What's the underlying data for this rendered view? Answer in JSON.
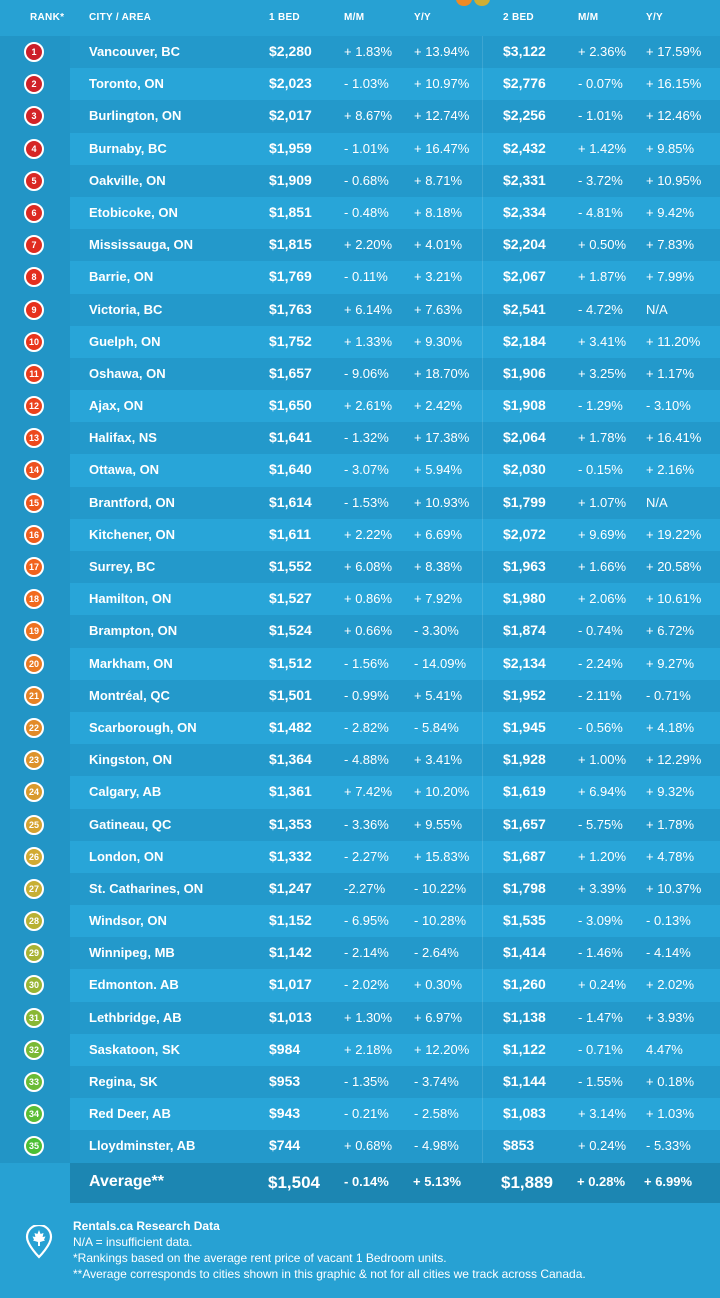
{
  "header": {
    "rank": "RANK*",
    "city": "CITY / AREA",
    "bed1": "1 BED",
    "mm1": "M/M",
    "yy1": "Y/Y",
    "bed2": "2 BED",
    "mm2": "M/M",
    "yy2": "Y/Y"
  },
  "colors": {
    "background": "#27a1d3",
    "row_dark": "#2399cb",
    "row_light": "#28a5d8",
    "average_row": "#1c86b2",
    "rank_gradient": [
      "#cc1f2a",
      "#e8321c",
      "#f26a1d",
      "#cfae34",
      "#4cbf35"
    ]
  },
  "rows": [
    {
      "rank": "1",
      "city": "Vancouver, BC",
      "bed1": "$2,280",
      "mm1": "+ 1.83%",
      "yy1": "+ 13.94%",
      "bed2": "$3,122",
      "mm2": "+ 2.36%",
      "yy2": "+ 17.59%"
    },
    {
      "rank": "2",
      "city": "Toronto, ON",
      "bed1": "$2,023",
      "mm1": "- 1.03%",
      "yy1": "+ 10.97%",
      "bed2": "$2,776",
      "mm2": "- 0.07%",
      "yy2": "+ 16.15%"
    },
    {
      "rank": "3",
      "city": "Burlington, ON",
      "bed1": "$2,017",
      "mm1": "+ 8.67%",
      "yy1": "+ 12.74%",
      "bed2": "$2,256",
      "mm2": "- 1.01%",
      "yy2": "+ 12.46%"
    },
    {
      "rank": "4",
      "city": "Burnaby, BC",
      "bed1": "$1,959",
      "mm1": "- 1.01%",
      "yy1": "+ 16.47%",
      "bed2": "$2,432",
      "mm2": "+ 1.42%",
      "yy2": "+ 9.85%"
    },
    {
      "rank": "5",
      "city": "Oakville, ON",
      "bed1": "$1,909",
      "mm1": "- 0.68%",
      "yy1": "+ 8.71%",
      "bed2": "$2,331",
      "mm2": "- 3.72%",
      "yy2": "+ 10.95%"
    },
    {
      "rank": "6",
      "city": "Etobicoke, ON",
      "bed1": "$1,851",
      "mm1": "- 0.48%",
      "yy1": "+ 8.18%",
      "bed2": "$2,334",
      "mm2": "- 4.81%",
      "yy2": "+ 9.42%"
    },
    {
      "rank": "7",
      "city": "Mississauga, ON",
      "bed1": "$1,815",
      "mm1": "+ 2.20%",
      "yy1": "+ 4.01%",
      "bed2": "$2,204",
      "mm2": "+ 0.50%",
      "yy2": "+ 7.83%"
    },
    {
      "rank": "8",
      "city": "Barrie, ON",
      "bed1": "$1,769",
      "mm1": "- 0.11%",
      "yy1": "+ 3.21%",
      "bed2": "$2,067",
      "mm2": "+ 1.87%",
      "yy2": "+ 7.99%"
    },
    {
      "rank": "9",
      "city": "Victoria, BC",
      "bed1": "$1,763",
      "mm1": "+ 6.14%",
      "yy1": "+ 7.63%",
      "bed2": "$2,541",
      "mm2": "- 4.72%",
      "yy2": "N/A"
    },
    {
      "rank": "10",
      "city": "Guelph, ON",
      "bed1": "$1,752",
      "mm1": "+ 1.33%",
      "yy1": "+ 9.30%",
      "bed2": "$2,184",
      "mm2": "+ 3.41%",
      "yy2": "+ 11.20%"
    },
    {
      "rank": "11",
      "city": "Oshawa, ON",
      "bed1": "$1,657",
      "mm1": "- 9.06%",
      "yy1": "+ 18.70%",
      "bed2": "$1,906",
      "mm2": "+ 3.25%",
      "yy2": "+ 1.17%"
    },
    {
      "rank": "12",
      "city": "Ajax, ON",
      "bed1": "$1,650",
      "mm1": "+ 2.61%",
      "yy1": "+ 2.42%",
      "bed2": "$1,908",
      "mm2": "- 1.29%",
      "yy2": "- 3.10%"
    },
    {
      "rank": "13",
      "city": "Halifax, NS",
      "bed1": "$1,641",
      "mm1": "- 1.32%",
      "yy1": "+ 17.38%",
      "bed2": "$2,064",
      "mm2": "+ 1.78%",
      "yy2": "+ 16.41%"
    },
    {
      "rank": "14",
      "city": "Ottawa, ON",
      "bed1": "$1,640",
      "mm1": "- 3.07%",
      "yy1": "+ 5.94%",
      "bed2": "$2,030",
      "mm2": "- 0.15%",
      "yy2": "+ 2.16%"
    },
    {
      "rank": "15",
      "city": "Brantford, ON",
      "bed1": "$1,614",
      "mm1": "- 1.53%",
      "yy1": "+ 10.93%",
      "bed2": "$1,799",
      "mm2": "+ 1.07%",
      "yy2": "N/A"
    },
    {
      "rank": "16",
      "city": "Kitchener, ON",
      "bed1": "$1,611",
      "mm1": "+ 2.22%",
      "yy1": "+ 6.69%",
      "bed2": "$2,072",
      "mm2": "+ 9.69%",
      "yy2": "+ 19.22%"
    },
    {
      "rank": "17",
      "city": "Surrey, BC",
      "bed1": "$1,552",
      "mm1": "+ 6.08%",
      "yy1": "+ 8.38%",
      "bed2": "$1,963",
      "mm2": "+ 1.66%",
      "yy2": "+ 20.58%"
    },
    {
      "rank": "18",
      "city": "Hamilton, ON",
      "bed1": "$1,527",
      "mm1": "+ 0.86%",
      "yy1": "+ 7.92%",
      "bed2": "$1,980",
      "mm2": "+ 2.06%",
      "yy2": "+ 10.61%"
    },
    {
      "rank": "19",
      "city": "Brampton, ON",
      "bed1": "$1,524",
      "mm1": "+ 0.66%",
      "yy1": "- 3.30%",
      "bed2": "$1,874",
      "mm2": "- 0.74%",
      "yy2": "+ 6.72%"
    },
    {
      "rank": "20",
      "city": "Markham, ON",
      "bed1": "$1,512",
      "mm1": "- 1.56%",
      "yy1": "- 14.09%",
      "bed2": "$2,134",
      "mm2": "- 2.24%",
      "yy2": "+ 9.27%"
    },
    {
      "rank": "21",
      "city": "Montréal, QC",
      "bed1": "$1,501",
      "mm1": "- 0.99%",
      "yy1": "+ 5.41%",
      "bed2": "$1,952",
      "mm2": "- 2.11%",
      "yy2": "- 0.71%"
    },
    {
      "rank": "22",
      "city": "Scarborough, ON",
      "bed1": "$1,482",
      "mm1": "- 2.82%",
      "yy1": "- 5.84%",
      "bed2": "$1,945",
      "mm2": "- 0.56%",
      "yy2": "+ 4.18%"
    },
    {
      "rank": "23",
      "city": "Kingston, ON",
      "bed1": "$1,364",
      "mm1": "- 4.88%",
      "yy1": "+ 3.41%",
      "bed2": "$1,928",
      "mm2": "+ 1.00%",
      "yy2": "+ 12.29%"
    },
    {
      "rank": "24",
      "city": "Calgary, AB",
      "bed1": "$1,361",
      "mm1": "+ 7.42%",
      "yy1": "+ 10.20%",
      "bed2": "$1,619",
      "mm2": "+ 6.94%",
      "yy2": "+ 9.32%"
    },
    {
      "rank": "25",
      "city": "Gatineau, QC",
      "bed1": "$1,353",
      "mm1": "- 3.36%",
      "yy1": "+ 9.55%",
      "bed2": "$1,657",
      "mm2": "- 5.75%",
      "yy2": "+ 1.78%"
    },
    {
      "rank": "26",
      "city": "London, ON",
      "bed1": "$1,332",
      "mm1": "- 2.27%",
      "yy1": "+ 15.83%",
      "bed2": "$1,687",
      "mm2": "+ 1.20%",
      "yy2": "+ 4.78%"
    },
    {
      "rank": "27",
      "city": "St. Catharines, ON",
      "bed1": "$1,247",
      "mm1": "-2.27%",
      "yy1": "- 10.22%",
      "bed2": "$1,798",
      "mm2": "+ 3.39%",
      "yy2": "+ 10.37%"
    },
    {
      "rank": "28",
      "city": "Windsor, ON",
      "bed1": "$1,152",
      "mm1": "- 6.95%",
      "yy1": "- 10.28%",
      "bed2": "$1,535",
      "mm2": "- 3.09%",
      "yy2": "- 0.13%"
    },
    {
      "rank": "29",
      "city": "Winnipeg, MB",
      "bed1": "$1,142",
      "mm1": "- 2.14%",
      "yy1": "- 2.64%",
      "bed2": "$1,414",
      "mm2": "- 1.46%",
      "yy2": "- 4.14%"
    },
    {
      "rank": "30",
      "city": "Edmonton. AB",
      "bed1": "$1,017",
      "mm1": "- 2.02%",
      "yy1": "+ 0.30%",
      "bed2": "$1,260",
      "mm2": "+ 0.24%",
      "yy2": "+ 2.02%"
    },
    {
      "rank": "31",
      "city": "Lethbridge, AB",
      "bed1": "$1,013",
      "mm1": "+ 1.30%",
      "yy1": "+ 6.97%",
      "bed2": "$1,138",
      "mm2": "- 1.47%",
      "yy2": "+ 3.93%"
    },
    {
      "rank": "32",
      "city": "Saskatoon, SK",
      "bed1": "$984",
      "mm1": "+ 2.18%",
      "yy1": "+ 12.20%",
      "bed2": "$1,122",
      "mm2": "- 0.71%",
      "yy2": "4.47%"
    },
    {
      "rank": "33",
      "city": "Regina, SK",
      "bed1": "$953",
      "mm1": "- 1.35%",
      "yy1": "- 3.74%",
      "bed2": "$1,144",
      "mm2": "- 1.55%",
      "yy2": "+ 0.18%"
    },
    {
      "rank": "34",
      "city": "Red Deer, AB",
      "bed1": "$943",
      "mm1": "- 0.21%",
      "yy1": "- 2.58%",
      "bed2": "$1,083",
      "mm2": "+ 3.14%",
      "yy2": "+ 1.03%"
    },
    {
      "rank": "35",
      "city": "Lloydminster, AB",
      "bed1": "$744",
      "mm1": "+ 0.68%",
      "yy1": "- 4.98%",
      "bed2": "$853",
      "mm2": "+ 0.24%",
      "yy2": "- 5.33%"
    }
  ],
  "average": {
    "label": "Average**",
    "bed1": "$1,504",
    "mm1": "- 0.14%",
    "yy1": "+ 5.13%",
    "bed2": "$1,889",
    "mm2": "+ 0.28%",
    "yy2": "+ 6.99%"
  },
  "footer": {
    "icon": "map-pin-maple-leaf-icon",
    "title": "Rentals.ca Research Data",
    "lines": [
      "N/A = insufficient data.",
      "*Rankings based on the average rent price of vacant 1 Bedroom units.",
      "**Average corresponds to cities shown in this graphic & not for all cities we track across Canada."
    ]
  }
}
